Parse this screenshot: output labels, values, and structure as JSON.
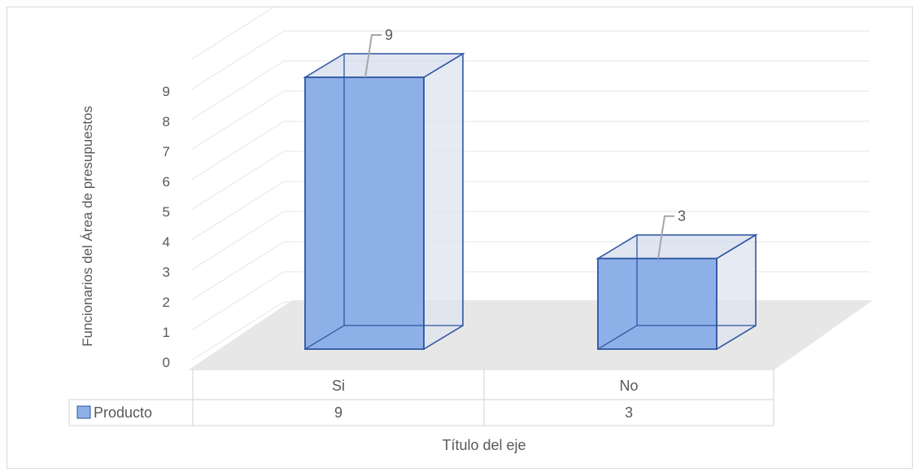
{
  "chart_data": {
    "type": "bar",
    "style": "3d-column-with-data-table",
    "categories": [
      "Si",
      "No"
    ],
    "series": [
      {
        "name": "Producto",
        "values": [
          9,
          3
        ]
      }
    ],
    "data_labels": [
      "9",
      "3"
    ],
    "ylabel": "Funcionarios del Área de presupuestos",
    "xlabel": "Título del eje",
    "ylim": [
      0,
      9
    ],
    "yticks": [
      "0",
      "1",
      "2",
      "3",
      "4",
      "5",
      "6",
      "7",
      "8",
      "9"
    ],
    "grid": true,
    "legend": "data-table",
    "colors": {
      "bar_front": "#8eb0e8",
      "bar_side": "#dde4ef",
      "bar_top": "#c9d5ea",
      "bar_edge": "#2f55a0",
      "floor": "#e7e7e7",
      "grid": "#e6e6e6",
      "text": "#595959",
      "legend_swatch": "#8eb0e8"
    }
  }
}
